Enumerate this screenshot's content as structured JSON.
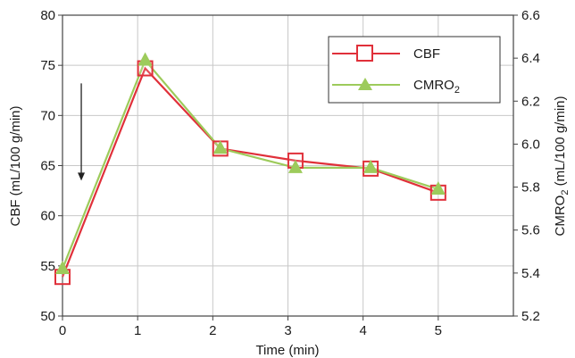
{
  "chart_data": {
    "type": "line",
    "xlabel": "Time (min)",
    "ylabel": "CBF (mL/100 g/min)",
    "y2label_parts": [
      "CMRO",
      "2",
      " (mL/100 g/min)"
    ],
    "xlim": [
      0,
      6
    ],
    "ylim": [
      50,
      80
    ],
    "y2lim": [
      5.2,
      6.6
    ],
    "x_ticks": [
      "0",
      "1",
      "2",
      "3",
      "4",
      "5"
    ],
    "y_ticks": [
      "50",
      "55",
      "60",
      "65",
      "70",
      "75",
      "80"
    ],
    "y2_ticks": [
      "5.2",
      "5.4",
      "5.6",
      "5.8",
      "6.0",
      "6.2",
      "6.4",
      "6.6"
    ],
    "grid": true,
    "legend_position": "top-right",
    "arrow_annotation": {
      "x": 0.25,
      "y_from": 73.2,
      "y_to": 63.5
    },
    "series": [
      {
        "name": "CBF",
        "axis": "left",
        "marker": "open-square",
        "color": "#e0303a",
        "points": [
          [
            0,
            53.9
          ],
          [
            1.1,
            74.7
          ],
          [
            2.1,
            66.7
          ],
          [
            3.1,
            65.5
          ],
          [
            4.1,
            64.7
          ],
          [
            5.0,
            62.3
          ]
        ]
      },
      {
        "name_parts": [
          "CMRO",
          "2"
        ],
        "axis": "right",
        "marker": "filled-triangle",
        "color": "#9dcb5b",
        "points": [
          [
            0,
            5.42
          ],
          [
            1.1,
            6.39
          ],
          [
            2.1,
            5.98
          ],
          [
            3.1,
            5.89
          ],
          [
            4.1,
            5.89
          ],
          [
            5.0,
            5.79
          ]
        ]
      }
    ]
  }
}
